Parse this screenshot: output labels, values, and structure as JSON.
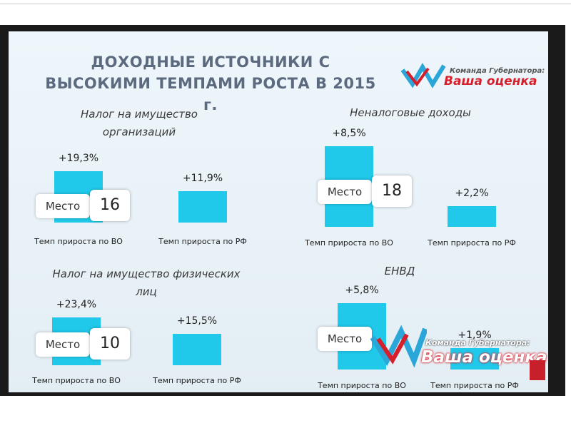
{
  "header": {
    "title": "ДОХОДНЫЕ ИСТОЧНИКИ С ВЫСОКИМИ ТЕМПАМИ РОСТА  В 2015 г.",
    "logo_top": "Команда Губернатора:",
    "logo_bottom": "Ваша оценка"
  },
  "chart_data": [
    {
      "type": "bar",
      "title": "Налог на имущество организаций",
      "categories": [
        "Темп прироста по ВО",
        "Темп прироста по РФ"
      ],
      "values": [
        19.3,
        11.9
      ],
      "value_labels": [
        "+19,3%",
        "+11,9%"
      ],
      "color": "#20c9ea",
      "annotation": {
        "label": "Место",
        "value": 16
      }
    },
    {
      "type": "bar",
      "title": "Неналоговые доходы",
      "categories": [
        "Темп прироста по ВО",
        "Темп прироста по РФ"
      ],
      "values": [
        8.5,
        2.2
      ],
      "value_labels": [
        "+8,5%",
        "+2,2%"
      ],
      "color": "#20c9ea",
      "annotation": {
        "label": "Место",
        "value": 18
      }
    },
    {
      "type": "bar",
      "title": "Налог на имущество физических лиц",
      "categories": [
        "Темп прироста по ВО",
        "Темп прироста по РФ"
      ],
      "values": [
        23.4,
        15.5
      ],
      "value_labels": [
        "+23,4%",
        "+15,5%"
      ],
      "color": "#20c9ea",
      "annotation": {
        "label": "Место",
        "value": 10
      }
    },
    {
      "type": "bar",
      "title": "ЕНВД",
      "categories": [
        "Темп прироста по ВО",
        "Темп прироста по РФ"
      ],
      "values": [
        5.8,
        1.9
      ],
      "value_labels": [
        "+5,8%",
        "+1,9%"
      ],
      "color": "#20c9ea",
      "annotation": {
        "label": "Место"
      }
    }
  ]
}
